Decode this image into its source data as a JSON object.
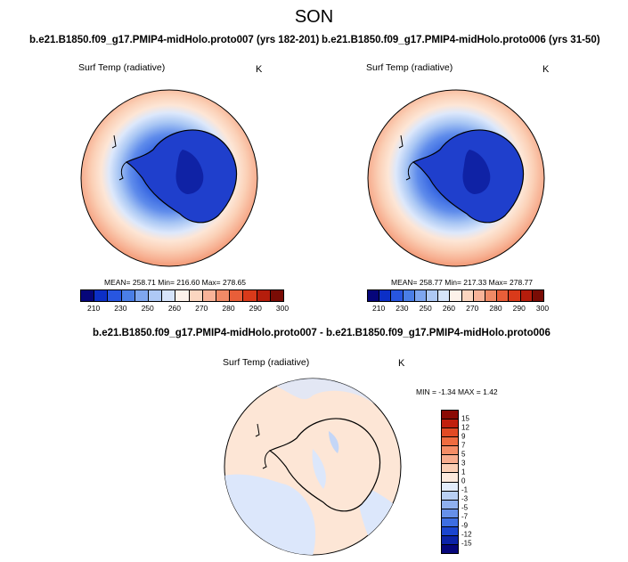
{
  "season": "SON",
  "panels": [
    {
      "title": "b.e21.B1850.f09_g17.PMIP4-midHolo.proto007 (yrs 182-201)",
      "variable": "Surf Temp (radiative)",
      "units": "K",
      "stats": "MEAN= 258.71   Min= 216.60   Max= 278.65"
    },
    {
      "title": "b.e21.B1850.f09_g17.PMIP4-midHolo.proto006 (yrs 31-50)",
      "variable": "Surf Temp (radiative)",
      "units": "K",
      "stats": "MEAN= 258.77   Min= 217.33   Max= 278.77"
    }
  ],
  "colorbar": {
    "labels": [
      "210",
      "230",
      "250",
      "260",
      "270",
      "280",
      "290",
      "300"
    ],
    "colors": [
      "#06067a",
      "#0c2fc6",
      "#2856e0",
      "#4a7ee6",
      "#7ea6ef",
      "#aec9f5",
      "#d6e4fa",
      "#fdf2ea",
      "#fbd6c0",
      "#f8b398",
      "#f08a66",
      "#e85e39",
      "#d93a1a",
      "#b51d0c",
      "#7a0c05"
    ]
  },
  "difference": {
    "title": "b.e21.B1850.f09_g17.PMIP4-midHolo.proto007 - b.e21.B1850.f09_g17.PMIP4-midHolo.proto006",
    "variable": "Surf Temp (radiative)",
    "units": "K",
    "minmax": "MIN =  -1.34  MAX =   1.42",
    "colorbar_labels": [
      "15",
      "12",
      "9",
      "7",
      "5",
      "3",
      "1",
      "0",
      "-1",
      "-3",
      "-5",
      "-7",
      "-9",
      "-12",
      "-15"
    ],
    "colorbar_colors": [
      "#8b0b05",
      "#c01f0d",
      "#e24a24",
      "#ef6c40",
      "#f58d66",
      "#f8ad8e",
      "#fbcfb5",
      "#fdeadd",
      "#e3edfb",
      "#b9d0f4",
      "#8fb0ef",
      "#6690e8",
      "#3d6ee2",
      "#1a45cf",
      "#0c23a7",
      "#06067a"
    ]
  }
}
